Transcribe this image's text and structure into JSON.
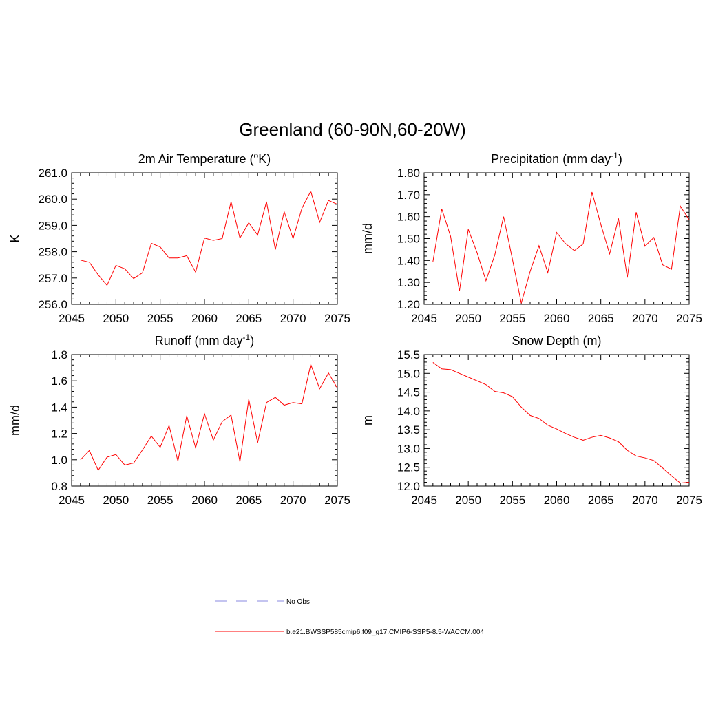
{
  "title": "Greenland (60-90N,60-20W)",
  "colors": {
    "model_line": "#ff0000",
    "obs_line": "#a0a0e6",
    "axis": "#000000"
  },
  "legend": {
    "obs_label": "No Obs",
    "model_label": "b.e21.BWSSP585cmip6.f09_g17.CMIP6-SSP5-8.5-WACCM.004"
  },
  "chart_data": [
    {
      "type": "line",
      "title_main": "2m Air Temperature (",
      "title_sup_pre": "o",
      "title_after_sup": "K)",
      "title_sup_post": "",
      "title_end": "",
      "ylabel": "K",
      "xlim": [
        2045,
        2075
      ],
      "ylim": [
        256.0,
        261.0
      ],
      "xticks": [
        "2045",
        "2050",
        "2055",
        "2060",
        "2065",
        "2070",
        "2075"
      ],
      "yticks": [
        "256.0",
        "257.0",
        "258.0",
        "259.0",
        "260.0",
        "261.0"
      ],
      "x": [
        2046,
        2047,
        2048,
        2049,
        2050,
        2051,
        2052,
        2053,
        2054,
        2055,
        2056,
        2057,
        2058,
        2059,
        2060,
        2061,
        2062,
        2063,
        2064,
        2065,
        2066,
        2067,
        2068,
        2069,
        2070,
        2071,
        2072,
        2073,
        2074,
        2075
      ],
      "series": [
        {
          "name": "b.e21.BWSSP585cmip6.f09_g17.CMIP6-SSP5-8.5-WACCM.004",
          "values": [
            257.68,
            257.6,
            257.12,
            256.72,
            257.48,
            257.35,
            256.98,
            257.2,
            258.32,
            258.18,
            257.76,
            257.76,
            257.85,
            257.22,
            258.52,
            258.43,
            258.5,
            259.9,
            258.52,
            259.1,
            258.63,
            259.9,
            258.08,
            259.52,
            258.5,
            259.65,
            260.3,
            259.12,
            259.95,
            259.8
          ]
        }
      ]
    },
    {
      "type": "line",
      "title_main": "Precipitation (mm day",
      "title_sup_pre": "",
      "title_after_sup": "",
      "title_sup_post": "-1",
      "title_end": ")",
      "ylabel": "mm/d",
      "xlim": [
        2045,
        2075
      ],
      "ylim": [
        1.2,
        1.8
      ],
      "xticks": [
        "2045",
        "2050",
        "2055",
        "2060",
        "2065",
        "2070",
        "2075"
      ],
      "yticks": [
        "1.20",
        "1.30",
        "1.40",
        "1.50",
        "1.60",
        "1.70",
        "1.80"
      ],
      "x": [
        2046,
        2047,
        2048,
        2049,
        2050,
        2051,
        2052,
        2053,
        2054,
        2055,
        2056,
        2057,
        2058,
        2059,
        2060,
        2061,
        2062,
        2063,
        2064,
        2065,
        2066,
        2067,
        2068,
        2069,
        2070,
        2071,
        2072,
        2073,
        2074,
        2075
      ],
      "series": [
        {
          "name": "b.e21.BWSSP585cmip6.f09_g17.CMIP6-SSP5-8.5-WACCM.004",
          "values": [
            1.395,
            1.635,
            1.51,
            1.26,
            1.542,
            1.435,
            1.308,
            1.425,
            1.6,
            1.405,
            1.205,
            1.35,
            1.467,
            1.345,
            1.528,
            1.477,
            1.445,
            1.475,
            1.712,
            1.565,
            1.43,
            1.592,
            1.322,
            1.62,
            1.465,
            1.505,
            1.38,
            1.36,
            1.648,
            1.585
          ]
        }
      ]
    },
    {
      "type": "line",
      "title_main": "Runoff (mm day",
      "title_sup_pre": "",
      "title_after_sup": "",
      "title_sup_post": "-1",
      "title_end": ")",
      "ylabel": "mm/d",
      "xlim": [
        2045,
        2075
      ],
      "ylim": [
        0.8,
        1.8
      ],
      "xticks": [
        "2045",
        "2050",
        "2055",
        "2060",
        "2065",
        "2070",
        "2075"
      ],
      "yticks": [
        "0.8",
        "1.0",
        "1.2",
        "1.4",
        "1.6",
        "1.8"
      ],
      "x": [
        2046,
        2047,
        2048,
        2049,
        2050,
        2051,
        2052,
        2053,
        2054,
        2055,
        2056,
        2057,
        2058,
        2059,
        2060,
        2061,
        2062,
        2063,
        2064,
        2065,
        2066,
        2067,
        2068,
        2069,
        2070,
        2071,
        2072,
        2073,
        2074,
        2075
      ],
      "series": [
        {
          "name": "b.e21.BWSSP585cmip6.f09_g17.CMIP6-SSP5-8.5-WACCM.004",
          "values": [
            1.0,
            1.07,
            0.92,
            1.02,
            1.04,
            0.96,
            0.975,
            1.075,
            1.18,
            1.095,
            1.26,
            0.99,
            1.335,
            1.09,
            1.35,
            1.15,
            1.29,
            1.34,
            0.985,
            1.46,
            1.13,
            1.435,
            1.475,
            1.415,
            1.435,
            1.425,
            1.725,
            1.54,
            1.66,
            1.545
          ]
        }
      ]
    },
    {
      "type": "line",
      "title_main": "Snow Depth (m)",
      "title_sup_pre": "",
      "title_after_sup": "",
      "title_sup_post": "",
      "title_end": "",
      "ylabel": "m",
      "xlim": [
        2045,
        2075
      ],
      "ylim": [
        12.0,
        15.5
      ],
      "xticks": [
        "2045",
        "2050",
        "2055",
        "2060",
        "2065",
        "2070",
        "2075"
      ],
      "yticks": [
        "12.0",
        "12.5",
        "13.0",
        "13.5",
        "14.0",
        "14.5",
        "15.0",
        "15.5"
      ],
      "x": [
        2046,
        2047,
        2048,
        2049,
        2050,
        2051,
        2052,
        2053,
        2054,
        2055,
        2056,
        2057,
        2058,
        2059,
        2060,
        2061,
        2062,
        2063,
        2064,
        2065,
        2066,
        2067,
        2068,
        2069,
        2070,
        2071,
        2072,
        2073,
        2074,
        2075
      ],
      "series": [
        {
          "name": "b.e21.BWSSP585cmip6.f09_g17.CMIP6-SSP5-8.5-WACCM.004",
          "values": [
            15.29,
            15.12,
            15.1,
            15.0,
            14.9,
            14.8,
            14.7,
            14.52,
            14.48,
            14.38,
            14.1,
            13.88,
            13.8,
            13.62,
            13.52,
            13.4,
            13.3,
            13.22,
            13.3,
            13.35,
            13.28,
            13.18,
            12.95,
            12.8,
            12.75,
            12.68,
            12.48,
            12.27,
            12.08,
            12.1
          ]
        }
      ]
    }
  ]
}
